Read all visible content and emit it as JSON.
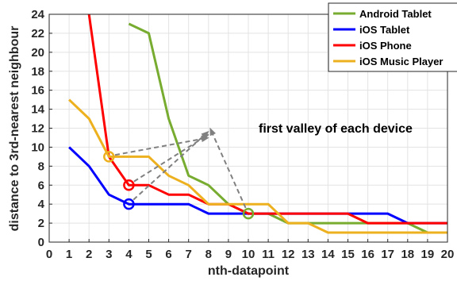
{
  "chart_data": {
    "type": "line",
    "title": "",
    "xlabel": "nth-datapoint",
    "ylabel": "distance to 3rd-nearest neighbour",
    "xlim": [
      0,
      20
    ],
    "ylim": [
      0,
      24
    ],
    "x_ticks": [
      0,
      1,
      2,
      3,
      4,
      5,
      6,
      7,
      8,
      9,
      10,
      11,
      12,
      13,
      14,
      15,
      16,
      17,
      18,
      19,
      20
    ],
    "y_ticks": [
      0,
      2,
      4,
      6,
      8,
      10,
      12,
      14,
      16,
      18,
      20,
      22,
      24
    ],
    "grid": true,
    "legend_position": "top-right",
    "series": [
      {
        "name": "Android Tablet",
        "color": "#77ac30",
        "x": [
          4,
          5,
          6,
          7,
          8,
          9,
          10,
          11,
          12,
          13,
          14,
          15,
          16,
          17,
          18,
          19,
          20
        ],
        "values": [
          23,
          22,
          13,
          7,
          6,
          4,
          3,
          3,
          2,
          2,
          2,
          2,
          2,
          2,
          2,
          1,
          1
        ]
      },
      {
        "name": "iOS Tablet",
        "color": "#0000ff",
        "x": [
          1,
          2,
          3,
          4,
          5,
          6,
          7,
          8,
          9,
          10,
          11,
          12,
          13,
          14,
          15,
          16,
          17,
          18,
          19,
          20
        ],
        "values": [
          10,
          8,
          5,
          4,
          4,
          4,
          4,
          3,
          3,
          3,
          3,
          3,
          3,
          3,
          3,
          3,
          3,
          2,
          2,
          2
        ]
      },
      {
        "name": "iOS Phone",
        "color": "#ff0000",
        "x": [
          2,
          3,
          4,
          5,
          6,
          7,
          8,
          9,
          10,
          11,
          12,
          13,
          14,
          15,
          16,
          17,
          18,
          19,
          20
        ],
        "values": [
          24,
          9,
          6,
          6,
          5,
          5,
          4,
          4,
          3,
          3,
          3,
          3,
          3,
          3,
          2,
          2,
          2,
          2,
          2
        ]
      },
      {
        "name": "iOS Music Player",
        "color": "#edb120",
        "x": [
          1,
          2,
          3,
          4,
          5,
          6,
          7,
          8,
          9,
          10,
          11,
          12,
          13,
          14,
          15,
          16,
          17,
          18,
          19,
          20
        ],
        "values": [
          15,
          13,
          9,
          9,
          9,
          7,
          6,
          4,
          4,
          4,
          4,
          2,
          2,
          1,
          1,
          1,
          1,
          1,
          1,
          1
        ]
      }
    ],
    "valley_markers": [
      {
        "series": "Android Tablet",
        "x": 10,
        "y": 3
      },
      {
        "series": "iOS Tablet",
        "x": 4,
        "y": 4
      },
      {
        "series": "iOS Phone",
        "x": 4,
        "y": 6
      },
      {
        "series": "iOS Music Player",
        "x": 3,
        "y": 9
      }
    ],
    "annotation": {
      "text": "first valley of each device",
      "target": {
        "x": 8,
        "y": 12
      }
    }
  }
}
